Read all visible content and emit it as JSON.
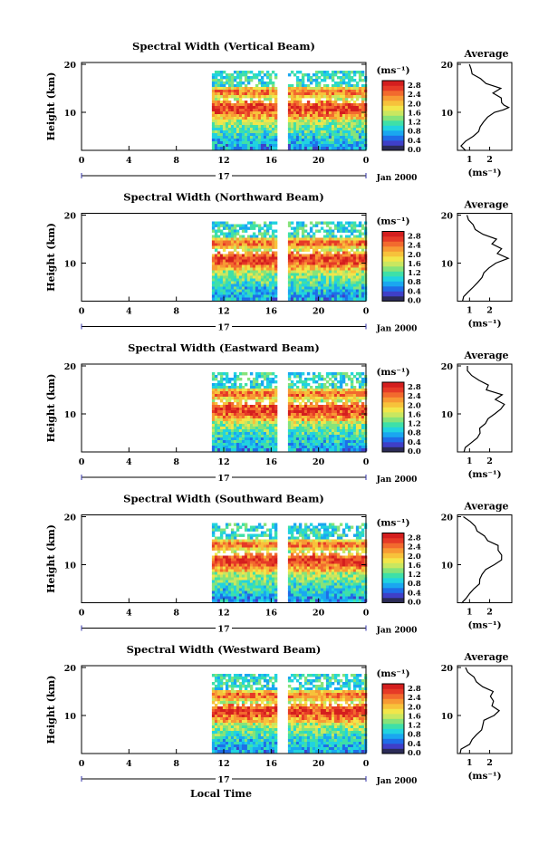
{
  "chart_data": {
    "type": "heatmap",
    "common": {
      "xlabel": "Local Time",
      "x_ticks": [
        "0",
        "4",
        "8",
        "12",
        "16",
        "20",
        "0"
      ],
      "x_range_hours": [
        0,
        24
      ],
      "day_label": "17",
      "date_label": "Jan 2000",
      "ylabel": "Height (km)",
      "y_ticks": [
        "20",
        "10"
      ],
      "colorbar_unit": "(ms⁻¹)",
      "colorbar_ticks": [
        "2.8",
        "2.4",
        "2.0",
        "1.6",
        "1.2",
        "0.8",
        "0.4",
        "0.0"
      ],
      "data_start_hour": 11,
      "data_gap_hours": [
        16.5,
        17.2
      ],
      "profile_title": "Average",
      "profile_xlabel": "(ms⁻¹)",
      "profile_x_ticks": [
        "1",
        "2"
      ],
      "profile_y_ticks": [
        "20",
        "10"
      ]
    },
    "panels": [
      {
        "title": "Spectral Width (Vertical Beam)",
        "profile": [
          [
            2,
            0.7
          ],
          [
            3,
            0.7
          ],
          [
            4,
            0.9
          ],
          [
            5,
            1.2
          ],
          [
            6,
            1.4
          ],
          [
            7,
            1.5
          ],
          [
            8,
            1.6
          ],
          [
            9,
            1.8
          ],
          [
            10,
            2.2
          ],
          [
            10.5,
            2.7
          ],
          [
            11,
            2.9
          ],
          [
            11.5,
            2.7
          ],
          [
            12,
            2.6
          ],
          [
            13,
            2.5
          ],
          [
            14,
            2.2
          ],
          [
            15,
            2.5
          ],
          [
            16,
            1.8
          ],
          [
            17,
            1.5
          ],
          [
            18,
            1.2
          ],
          [
            19,
            1.0
          ],
          [
            20,
            0.9
          ]
        ]
      },
      {
        "title": "Spectral Width (Northward Beam)",
        "profile": [
          [
            2,
            0.7
          ],
          [
            3,
            0.8
          ],
          [
            4,
            1.0
          ],
          [
            5,
            1.3
          ],
          [
            6,
            1.5
          ],
          [
            7,
            1.6
          ],
          [
            8,
            1.8
          ],
          [
            9,
            2.0
          ],
          [
            10,
            2.4
          ],
          [
            11,
            2.9
          ],
          [
            12,
            2.3
          ],
          [
            13,
            2.5
          ],
          [
            14,
            2.0
          ],
          [
            15,
            2.3
          ],
          [
            16,
            1.6
          ],
          [
            17,
            1.4
          ],
          [
            18,
            1.2
          ],
          [
            19,
            0.9
          ],
          [
            20,
            0.8
          ]
        ]
      },
      {
        "title": "Spectral Width (Eastward Beam)",
        "profile": [
          [
            2,
            0.7
          ],
          [
            3,
            0.8
          ],
          [
            4,
            1.0
          ],
          [
            5,
            1.3
          ],
          [
            6,
            1.5
          ],
          [
            7,
            1.6
          ],
          [
            8,
            1.7
          ],
          [
            9,
            1.9
          ],
          [
            10,
            2.3
          ],
          [
            11,
            2.6
          ],
          [
            12,
            2.8
          ],
          [
            13,
            2.4
          ],
          [
            14,
            2.7
          ],
          [
            15,
            1.8
          ],
          [
            16,
            1.9
          ],
          [
            17,
            1.4
          ],
          [
            18,
            1.2
          ],
          [
            19,
            0.9
          ],
          [
            20,
            0.8
          ]
        ]
      },
      {
        "title": "Spectral Width (Southward Beam)",
        "profile": [
          [
            2,
            0.7
          ],
          [
            3,
            0.8
          ],
          [
            4,
            1.0
          ],
          [
            5,
            1.3
          ],
          [
            6,
            1.5
          ],
          [
            7,
            1.6
          ],
          [
            8,
            1.7
          ],
          [
            9,
            1.9
          ],
          [
            10,
            2.2
          ],
          [
            11,
            2.7
          ],
          [
            12,
            2.5
          ],
          [
            13,
            2.3
          ],
          [
            14,
            2.4
          ],
          [
            15,
            2.0
          ],
          [
            16,
            1.7
          ],
          [
            17,
            1.5
          ],
          [
            18,
            1.3
          ],
          [
            19,
            1.0
          ],
          [
            20,
            0.8
          ]
        ]
      },
      {
        "title": "Spectral Width (Westward Beam)",
        "profile": [
          [
            2,
            0.6
          ],
          [
            3,
            0.7
          ],
          [
            4,
            0.9
          ],
          [
            5,
            1.2
          ],
          [
            6,
            1.4
          ],
          [
            7,
            1.5
          ],
          [
            8,
            1.6
          ],
          [
            9,
            1.8
          ],
          [
            10,
            2.1
          ],
          [
            11,
            2.5
          ],
          [
            12,
            2.2
          ],
          [
            13,
            2.3
          ],
          [
            14,
            2.0
          ],
          [
            15,
            2.2
          ],
          [
            16,
            1.6
          ],
          [
            17,
            1.4
          ],
          [
            18,
            1.3
          ],
          [
            19,
            1.0
          ],
          [
            20,
            0.8
          ]
        ]
      }
    ],
    "colorbar_colors": [
      "#2b2b57",
      "#3f3fc8",
      "#1f6de8",
      "#1aa7f0",
      "#21d3e0",
      "#3ee0a8",
      "#86e37a",
      "#c9e760",
      "#f2e64a",
      "#f7c23b",
      "#f79a34",
      "#f26a2e",
      "#e63a27",
      "#d41e1e"
    ]
  }
}
